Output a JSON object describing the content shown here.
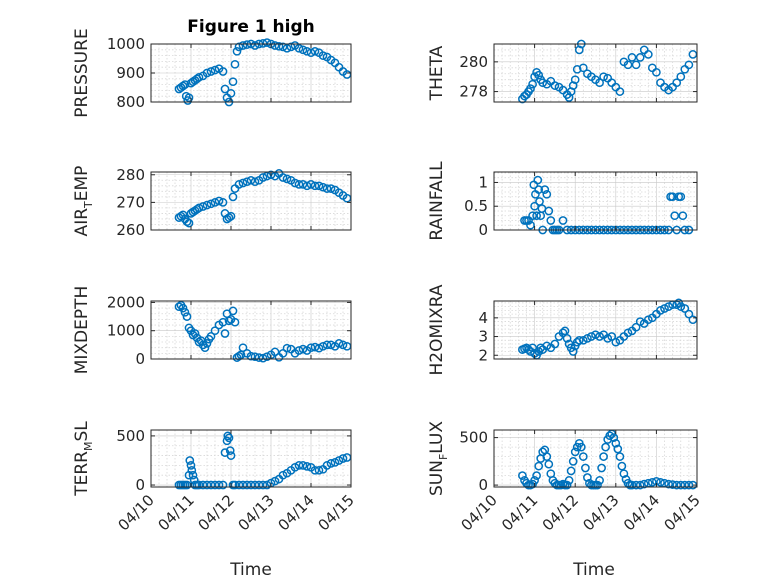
{
  "figure": {
    "title": "Figure 1 high",
    "xlabel": "Time",
    "color": "#0072BD"
  },
  "chart_data": [
    {
      "type": "scatter",
      "ylabel": "PRESSURE",
      "ylim": [
        800,
        1000
      ],
      "yticks": [
        "800",
        "900",
        "1000"
      ],
      "xlim": [
        0,
        5
      ],
      "xticks": [
        "04/10",
        "04/11",
        "04/12",
        "04/13",
        "04/14",
        "04/15"
      ],
      "grid": true,
      "x": [
        0.7,
        0.75,
        0.8,
        0.85,
        0.88,
        0.92,
        0.95,
        1.0,
        1.05,
        1.1,
        1.15,
        1.2,
        1.3,
        1.4,
        1.5,
        1.6,
        1.7,
        1.8,
        1.85,
        1.9,
        1.95,
        2.0,
        2.05,
        2.1,
        2.15,
        2.2,
        2.3,
        2.4,
        2.5,
        2.6,
        2.7,
        2.8,
        2.9,
        3.0,
        3.1,
        3.2,
        3.3,
        3.4,
        3.5,
        3.6,
        3.7,
        3.8,
        3.9,
        4.0,
        4.1,
        4.2,
        4.3,
        4.4,
        4.5,
        4.6,
        4.7,
        4.8,
        4.9
      ],
      "y": [
        845,
        850,
        855,
        860,
        820,
        805,
        815,
        865,
        870,
        875,
        880,
        885,
        890,
        900,
        905,
        910,
        915,
        905,
        845,
        815,
        800,
        830,
        870,
        930,
        975,
        990,
        995,
        998,
        1000,
        995,
        1000,
        1002,
        1005,
        1000,
        995,
        992,
        990,
        985,
        990,
        995,
        985,
        980,
        975,
        970,
        975,
        970,
        960,
        955,
        945,
        935,
        920,
        905,
        895
      ]
    },
    {
      "type": "scatter",
      "ylabel": "THETA",
      "ylim": [
        277.3,
        281.2
      ],
      "yticks": [
        "278",
        "280"
      ],
      "xlim": [
        0,
        5
      ],
      "xticks": [
        "04/10",
        "04/11",
        "04/12",
        "04/13",
        "04/14",
        "04/15"
      ],
      "grid": true,
      "x": [
        0.7,
        0.75,
        0.8,
        0.85,
        0.9,
        0.95,
        1.0,
        1.05,
        1.1,
        1.15,
        1.2,
        1.3,
        1.4,
        1.5,
        1.6,
        1.7,
        1.8,
        1.85,
        1.9,
        1.95,
        2.0,
        2.05,
        2.1,
        2.15,
        2.2,
        2.3,
        2.4,
        2.5,
        2.6,
        2.7,
        2.8,
        2.9,
        3.0,
        3.1,
        3.2,
        3.3,
        3.4,
        3.5,
        3.6,
        3.7,
        3.8,
        3.9,
        4.0,
        4.1,
        4.2,
        4.3,
        4.4,
        4.5,
        4.6,
        4.7,
        4.8,
        4.9
      ],
      "y": [
        277.5,
        277.7,
        277.8,
        278.0,
        278.2,
        278.5,
        279.0,
        279.3,
        279.1,
        278.8,
        278.6,
        278.5,
        278.7,
        278.4,
        278.3,
        278.1,
        277.8,
        277.6,
        278.0,
        278.4,
        278.8,
        279.5,
        280.8,
        281.2,
        279.6,
        279.2,
        279.0,
        278.8,
        278.6,
        279.0,
        278.9,
        278.6,
        278.3,
        278.0,
        280.0,
        279.8,
        280.3,
        279.8,
        280.3,
        280.8,
        280.5,
        279.6,
        279.3,
        278.6,
        278.3,
        278.1,
        278.3,
        278.6,
        279.0,
        279.5,
        279.8,
        280.5
      ]
    },
    {
      "type": "scatter",
      "ylabel": "AIR",
      "ylabel_sub": "T",
      "ylabel_rest": "EMP",
      "ylim": [
        260,
        281
      ],
      "yticks": [
        "260",
        "270",
        "280"
      ],
      "xlim": [
        0,
        5
      ],
      "xticks": [
        "04/10",
        "04/11",
        "04/12",
        "04/13",
        "04/14",
        "04/15"
      ],
      "grid": true,
      "x": [
        0.7,
        0.75,
        0.8,
        0.85,
        0.9,
        0.95,
        1.0,
        1.05,
        1.1,
        1.15,
        1.2,
        1.3,
        1.4,
        1.5,
        1.6,
        1.7,
        1.8,
        1.85,
        1.9,
        1.95,
        2.0,
        2.05,
        2.1,
        2.2,
        2.3,
        2.4,
        2.5,
        2.6,
        2.7,
        2.8,
        2.9,
        3.0,
        3.1,
        3.2,
        3.3,
        3.4,
        3.5,
        3.6,
        3.7,
        3.8,
        3.9,
        4.0,
        4.1,
        4.2,
        4.3,
        4.4,
        4.5,
        4.6,
        4.7,
        4.8,
        4.9
      ],
      "y": [
        264.5,
        265,
        265.5,
        264,
        263,
        262.5,
        266,
        266.5,
        267,
        267.5,
        268,
        268.5,
        269,
        269.5,
        270,
        270.5,
        270,
        266,
        264,
        264.5,
        265,
        272,
        275,
        276.5,
        277,
        277.5,
        278,
        277.5,
        278,
        279,
        279.5,
        280,
        279.5,
        280.5,
        279,
        278.5,
        278,
        277,
        276.5,
        276.5,
        276,
        276.5,
        276,
        276,
        275.5,
        275,
        275,
        274.5,
        273.5,
        272.5,
        271.5
      ]
    },
    {
      "type": "scatter",
      "ylabel": "RAINFALL",
      "ylim": [
        0,
        1.22
      ],
      "yticks": [
        "0",
        "0.5",
        "1"
      ],
      "xlim": [
        0,
        5
      ],
      "xticks": [
        "04/10",
        "04/11",
        "04/12",
        "04/13",
        "04/14",
        "04/15"
      ],
      "grid": true,
      "x": [
        0.75,
        0.8,
        0.85,
        0.9,
        0.95,
        0.98,
        1.0,
        1.02,
        1.05,
        1.08,
        1.1,
        1.12,
        1.15,
        1.18,
        1.2,
        1.25,
        1.3,
        1.35,
        1.4,
        1.45,
        1.5,
        1.55,
        1.6,
        1.7,
        1.8,
        1.9,
        2.0,
        2.1,
        2.2,
        2.3,
        2.4,
        2.5,
        2.6,
        2.7,
        2.8,
        2.9,
        3.0,
        3.1,
        3.2,
        3.3,
        3.4,
        3.5,
        3.6,
        3.7,
        3.8,
        3.9,
        4.0,
        4.1,
        4.2,
        4.3,
        4.35,
        4.4,
        4.45,
        4.5,
        4.55,
        4.6,
        4.65,
        4.7,
        4.8
      ],
      "y": [
        0.2,
        0.2,
        0.2,
        0.1,
        0.3,
        0.95,
        0.5,
        0.75,
        0.3,
        1.05,
        0.85,
        0.6,
        0.3,
        0.45,
        0,
        0.85,
        0.75,
        0.4,
        0.2,
        0,
        0,
        0,
        0,
        0.2,
        0,
        0,
        0,
        0,
        0,
        0,
        0,
        0,
        0,
        0,
        0,
        0,
        0,
        0,
        0,
        0,
        0,
        0,
        0,
        0,
        0,
        0,
        0,
        0,
        0,
        0,
        0.7,
        0.7,
        0.3,
        0,
        0.7,
        0.7,
        0.3,
        0,
        0
      ]
    },
    {
      "type": "scatter",
      "ylabel": "MIXDEPTH",
      "ylim": [
        0,
        2050
      ],
      "yticks": [
        "0",
        "1000",
        "2000"
      ],
      "xlim": [
        0,
        5
      ],
      "xticks": [
        "04/10",
        "04/11",
        "04/12",
        "04/13",
        "04/14",
        "04/15"
      ],
      "grid": true,
      "x": [
        0.7,
        0.75,
        0.8,
        0.85,
        0.9,
        0.95,
        1.0,
        1.05,
        1.1,
        1.15,
        1.2,
        1.25,
        1.3,
        1.35,
        1.4,
        1.45,
        1.5,
        1.6,
        1.7,
        1.8,
        1.85,
        1.9,
        1.95,
        2.0,
        2.05,
        2.1,
        2.15,
        2.2,
        2.25,
        2.3,
        2.4,
        2.5,
        2.6,
        2.7,
        2.8,
        2.9,
        3.0,
        3.1,
        3.2,
        3.3,
        3.4,
        3.5,
        3.6,
        3.7,
        3.8,
        3.9,
        4.0,
        4.1,
        4.2,
        4.3,
        4.4,
        4.5,
        4.6,
        4.7,
        4.8,
        4.9
      ],
      "y": [
        1850,
        1900,
        1800,
        1650,
        1500,
        1100,
        1000,
        850,
        900,
        750,
        600,
        650,
        500,
        400,
        550,
        700,
        800,
        1000,
        1200,
        1300,
        900,
        1600,
        1350,
        1400,
        1700,
        1300,
        50,
        100,
        150,
        400,
        200,
        100,
        80,
        50,
        30,
        80,
        150,
        250,
        60,
        200,
        380,
        350,
        200,
        300,
        350,
        300,
        400,
        420,
        380,
        450,
        500,
        500,
        450,
        550,
        500,
        450
      ]
    },
    {
      "type": "scatter",
      "ylabel": "H2OMIXRA",
      "ylim": [
        1.8,
        4.9
      ],
      "yticks": [
        "2",
        "3",
        "4"
      ],
      "xlim": [
        0,
        5
      ],
      "xticks": [
        "04/10",
        "04/11",
        "04/12",
        "04/13",
        "04/14",
        "04/15"
      ],
      "grid": true,
      "x": [
        0.7,
        0.75,
        0.8,
        0.85,
        0.9,
        0.95,
        1.0,
        1.05,
        1.1,
        1.15,
        1.2,
        1.3,
        1.4,
        1.5,
        1.6,
        1.7,
        1.75,
        1.8,
        1.85,
        1.9,
        1.95,
        2.0,
        2.05,
        2.1,
        2.2,
        2.3,
        2.4,
        2.5,
        2.6,
        2.7,
        2.8,
        2.9,
        3.0,
        3.1,
        3.2,
        3.3,
        3.4,
        3.5,
        3.6,
        3.7,
        3.8,
        3.9,
        4.0,
        4.1,
        4.2,
        4.3,
        4.4,
        4.5,
        4.55,
        4.6,
        4.7,
        4.8,
        4.9
      ],
      "y": [
        2.3,
        2.35,
        2.4,
        2.3,
        2.2,
        2.4,
        2.1,
        2.0,
        2.2,
        2.4,
        2.3,
        2.5,
        2.4,
        2.6,
        3.0,
        3.2,
        3.3,
        2.9,
        2.6,
        2.4,
        2.2,
        2.5,
        2.7,
        2.8,
        2.8,
        2.9,
        3.0,
        3.1,
        3.0,
        3.1,
        2.9,
        3.0,
        2.7,
        2.8,
        3.0,
        3.2,
        3.3,
        3.5,
        3.8,
        3.7,
        3.9,
        4.0,
        4.2,
        4.4,
        4.5,
        4.6,
        4.7,
        4.7,
        4.8,
        4.6,
        4.5,
        4.2,
        3.9
      ]
    },
    {
      "type": "scatter",
      "ylabel": "TERR",
      "ylabel_sub": "M",
      "ylabel_rest": "SL",
      "ylim": [
        -20,
        560
      ],
      "yticks": [
        "0",
        "500"
      ],
      "xlim": [
        0,
        5
      ],
      "xticks": [
        "04/10",
        "04/11",
        "04/12",
        "04/13",
        "04/14",
        "04/15"
      ],
      "grid": true,
      "x": [
        0.7,
        0.75,
        0.8,
        0.85,
        0.9,
        0.95,
        0.97,
        1.0,
        1.02,
        1.05,
        1.08,
        1.1,
        1.15,
        1.2,
        1.3,
        1.4,
        1.5,
        1.6,
        1.7,
        1.8,
        1.85,
        1.9,
        1.92,
        1.95,
        1.98,
        2.0,
        2.05,
        2.1,
        2.2,
        2.3,
        2.4,
        2.5,
        2.6,
        2.7,
        2.8,
        2.9,
        3.0,
        3.1,
        3.2,
        3.3,
        3.4,
        3.5,
        3.6,
        3.7,
        3.8,
        3.9,
        4.0,
        4.1,
        4.2,
        4.3,
        4.4,
        4.5,
        4.6,
        4.7,
        4.8,
        4.9
      ],
      "y": [
        0,
        0,
        0,
        0,
        0,
        100,
        250,
        200,
        150,
        100,
        50,
        0,
        0,
        0,
        0,
        0,
        0,
        0,
        0,
        0,
        330,
        450,
        500,
        480,
        350,
        300,
        0,
        0,
        0,
        0,
        0,
        0,
        0,
        0,
        0,
        0,
        20,
        40,
        60,
        100,
        120,
        150,
        180,
        200,
        200,
        190,
        180,
        150,
        150,
        160,
        200,
        220,
        230,
        250,
        270,
        280
      ]
    },
    {
      "type": "scatter",
      "ylabel": "SUN",
      "ylabel_sub": "F",
      "ylabel_rest": "LUX",
      "ylim": [
        -20,
        580
      ],
      "yticks": [
        "0",
        "500"
      ],
      "xlim": [
        0,
        5
      ],
      "xticks": [
        "04/10",
        "04/11",
        "04/12",
        "04/13",
        "04/14",
        "04/15"
      ],
      "grid": true,
      "x": [
        0.7,
        0.75,
        0.8,
        0.85,
        0.9,
        0.95,
        1.0,
        1.05,
        1.1,
        1.15,
        1.2,
        1.25,
        1.3,
        1.35,
        1.4,
        1.45,
        1.5,
        1.55,
        1.6,
        1.65,
        1.7,
        1.75,
        1.8,
        1.85,
        1.9,
        1.95,
        2.0,
        2.05,
        2.1,
        2.15,
        2.2,
        2.25,
        2.3,
        2.35,
        2.4,
        2.45,
        2.5,
        2.55,
        2.6,
        2.65,
        2.7,
        2.75,
        2.8,
        2.85,
        2.9,
        2.95,
        3.0,
        3.05,
        3.1,
        3.15,
        3.2,
        3.25,
        3.3,
        3.35,
        3.4,
        3.5,
        3.6,
        3.7,
        3.8,
        3.9,
        4.0,
        4.1,
        4.2,
        4.3,
        4.4,
        4.5,
        4.6,
        4.7,
        4.8,
        4.9
      ],
      "y": [
        100,
        50,
        20,
        0,
        0,
        10,
        50,
        100,
        200,
        280,
        350,
        370,
        300,
        220,
        120,
        50,
        20,
        0,
        0,
        0,
        10,
        0,
        0,
        50,
        150,
        250,
        350,
        400,
        440,
        400,
        300,
        180,
        80,
        20,
        0,
        0,
        0,
        0,
        50,
        180,
        300,
        400,
        480,
        520,
        540,
        500,
        440,
        380,
        300,
        200,
        120,
        60,
        20,
        0,
        0,
        0,
        0,
        10,
        20,
        30,
        40,
        30,
        20,
        10,
        5,
        0,
        0,
        0,
        0,
        0
      ]
    }
  ]
}
